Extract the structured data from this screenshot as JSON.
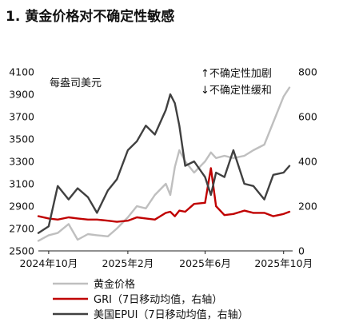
{
  "chart_data": {
    "type": "line",
    "title": "1. 黄金价格对不确定性敏感",
    "left_axis_unit": "每盎司美元",
    "right_axis_notes": [
      "↑不确定性加剧",
      "↓不确定性缓和"
    ],
    "x_ticks": [
      "2024年10月",
      "2025年2月",
      "2025年6月",
      "2025年10月"
    ],
    "x_tick_dates": [
      "2024-10-01",
      "2025-02-01",
      "2025-06-01",
      "2025-10-01"
    ],
    "x_range": [
      "2024-09-15",
      "2025-10-15"
    ],
    "ylim_left": [
      2500,
      4100
    ],
    "yticks_left": [
      2500,
      2700,
      2900,
      3100,
      3300,
      3500,
      3700,
      3900,
      4100
    ],
    "ylim_right": [
      0,
      800
    ],
    "yticks_right": [
      0,
      200,
      400,
      600,
      800
    ],
    "grid": false,
    "legend_position": "bottom",
    "x": [
      "2024-09-15",
      "2024-10-01",
      "2024-10-15",
      "2024-11-01",
      "2024-11-15",
      "2024-12-01",
      "2024-12-15",
      "2025-01-01",
      "2025-01-15",
      "2025-02-01",
      "2025-02-15",
      "2025-03-01",
      "2025-03-15",
      "2025-04-01",
      "2025-04-08",
      "2025-04-15",
      "2025-04-22",
      "2025-05-01",
      "2025-05-15",
      "2025-06-01",
      "2025-06-10",
      "2025-06-18",
      "2025-07-01",
      "2025-07-15",
      "2025-08-01",
      "2025-08-15",
      "2025-09-01",
      "2025-09-15",
      "2025-10-01",
      "2025-10-10"
    ],
    "series": [
      {
        "name": "黄金价格",
        "axis": "left",
        "color": "#bfbfbf",
        "values": [
          2590,
          2640,
          2660,
          2740,
          2600,
          2650,
          2640,
          2630,
          2700,
          2800,
          2900,
          2880,
          3000,
          3100,
          3000,
          3250,
          3400,
          3300,
          3200,
          3300,
          3380,
          3330,
          3350,
          3330,
          3350,
          3400,
          3450,
          3650,
          3880,
          3960
        ]
      },
      {
        "name": "GRI（7日移动均值，右轴）",
        "axis": "right",
        "color": "#c00000",
        "values": [
          155,
          145,
          140,
          150,
          145,
          140,
          140,
          135,
          130,
          135,
          150,
          145,
          140,
          170,
          175,
          155,
          180,
          175,
          210,
          215,
          370,
          200,
          160,
          165,
          180,
          170,
          170,
          155,
          165,
          175
        ]
      },
      {
        "name": "美国EPUI（7日移动均值，右轴）",
        "axis": "right",
        "color": "#404040",
        "values": [
          80,
          110,
          290,
          230,
          280,
          240,
          170,
          270,
          320,
          450,
          490,
          560,
          520,
          630,
          700,
          660,
          560,
          380,
          400,
          330,
          250,
          350,
          330,
          450,
          300,
          290,
          230,
          340,
          350,
          380
        ]
      }
    ]
  }
}
